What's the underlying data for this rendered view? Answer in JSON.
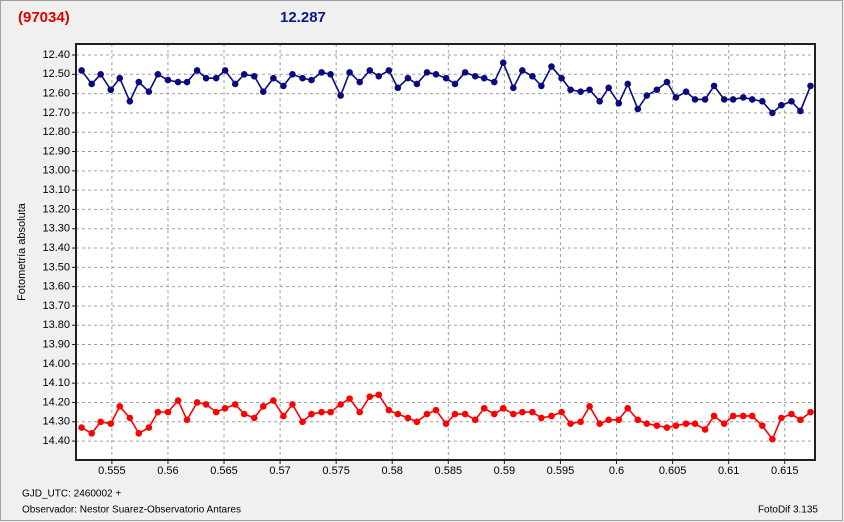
{
  "chart_data": {
    "type": "line",
    "title": "(97034)",
    "subtitle": "12.287",
    "y_label": "Fotometría absoluta",
    "x_note": "GJD_UTC: 2460002 +",
    "observer": "Observador: Nestor Suarez-Observatorio Antares",
    "software": "FotoDif 3.135",
    "title_color": "#e00000",
    "subtitle_color": "#0a1a8a",
    "grid": true,
    "y_inverted": true,
    "xlim": [
      0.5518,
      0.6177
    ],
    "ylim": [
      12.343,
      14.498
    ],
    "xticks": [
      0.555,
      0.56,
      0.565,
      0.57,
      0.575,
      0.58,
      0.585,
      0.59,
      0.595,
      0.6,
      0.605,
      0.61,
      0.615
    ],
    "yticks": [
      {
        "value": 12.4,
        "label": "12.40"
      },
      {
        "value": 12.5,
        "label": "12.50"
      },
      {
        "value": 12.6,
        "label": "12.60"
      },
      {
        "value": 12.7,
        "label": "12.70"
      },
      {
        "value": 12.8,
        "label": "12.80"
      },
      {
        "value": 12.9,
        "label": "12.90"
      },
      {
        "value": 13.0,
        "label": "13.00"
      },
      {
        "value": 13.1,
        "label": "13.10"
      },
      {
        "value": 13.2,
        "label": "13.20"
      },
      {
        "value": 13.3,
        "label": "13.30"
      },
      {
        "value": 13.4,
        "label": "13.40"
      },
      {
        "value": 13.5,
        "label": "13.50"
      },
      {
        "value": 13.6,
        "label": "13.60"
      },
      {
        "value": 13.7,
        "label": "13.70"
      },
      {
        "value": 13.8,
        "label": "13.80"
      },
      {
        "value": 13.9,
        "label": "13.90"
      },
      {
        "value": 14.0,
        "label": "14.00"
      },
      {
        "value": 14.1,
        "label": "14.10"
      },
      {
        "value": 14.2,
        "label": "14.20"
      },
      {
        "value": 14.3,
        "label": "14.30"
      },
      {
        "value": 14.4,
        "label": "14.40"
      }
    ],
    "x": [
      0.5523,
      0.5532,
      0.554,
      0.5549,
      0.5557,
      0.5566,
      0.5574,
      0.5583,
      0.5591,
      0.56,
      0.5609,
      0.5617,
      0.5626,
      0.5634,
      0.5643,
      0.5651,
      0.566,
      0.5668,
      0.5677,
      0.5685,
      0.5694,
      0.5703,
      0.5711,
      0.572,
      0.5728,
      0.5737,
      0.5745,
      0.5754,
      0.5762,
      0.5771,
      0.578,
      0.5788,
      0.5797,
      0.5805,
      0.5814,
      0.5822,
      0.5831,
      0.5839,
      0.5848,
      0.5856,
      0.5865,
      0.5874,
      0.5882,
      0.5891,
      0.5899,
      0.5908,
      0.5916,
      0.5925,
      0.5933,
      0.5942,
      0.5951,
      0.5959,
      0.5968,
      0.5976,
      0.5985,
      0.5993,
      0.6002,
      0.601,
      0.6019,
      0.6027,
      0.6036,
      0.6045,
      0.6053,
      0.6062,
      0.607,
      0.6079,
      0.6087,
      0.6096,
      0.6104,
      0.6113,
      0.6121,
      0.613,
      0.6139,
      0.6147,
      0.6156,
      0.6164,
      0.6173
    ],
    "series": [
      {
        "color": "#0a0a80",
        "values": [
          12.48,
          12.55,
          12.5,
          12.58,
          12.52,
          12.64,
          12.54,
          12.59,
          12.5,
          12.53,
          12.54,
          12.54,
          12.48,
          12.52,
          12.52,
          12.48,
          12.55,
          12.5,
          12.51,
          12.59,
          12.52,
          12.56,
          12.5,
          12.52,
          12.53,
          12.49,
          12.5,
          12.61,
          12.49,
          12.54,
          12.48,
          12.51,
          12.48,
          12.57,
          12.52,
          12.55,
          12.49,
          12.5,
          12.52,
          12.55,
          12.49,
          12.51,
          12.52,
          12.54,
          12.44,
          12.57,
          12.48,
          12.51,
          12.56,
          12.46,
          12.52,
          12.58,
          12.59,
          12.58,
          12.64,
          12.57,
          12.65,
          12.55,
          12.68,
          12.61,
          12.58,
          12.54,
          12.62,
          12.59,
          12.63,
          12.63,
          12.56,
          12.63,
          12.63,
          12.62,
          12.63,
          12.64,
          12.7,
          12.66,
          12.64,
          12.69,
          12.56
        ]
      },
      {
        "color": "#ff0000",
        "values": [
          14.33,
          14.36,
          14.3,
          14.31,
          14.22,
          14.28,
          14.36,
          14.33,
          14.25,
          14.25,
          14.19,
          14.29,
          14.2,
          14.21,
          14.25,
          14.23,
          14.21,
          14.26,
          14.28,
          14.22,
          14.19,
          14.27,
          14.21,
          14.3,
          14.26,
          14.25,
          14.25,
          14.21,
          14.18,
          14.25,
          14.17,
          14.16,
          14.24,
          14.26,
          14.28,
          14.3,
          14.26,
          14.24,
          14.31,
          14.26,
          14.26,
          14.29,
          14.23,
          14.26,
          14.23,
          14.26,
          14.25,
          14.25,
          14.28,
          14.27,
          14.25,
          14.31,
          14.3,
          14.22,
          14.31,
          14.29,
          14.29,
          14.23,
          14.29,
          14.31,
          14.32,
          14.33,
          14.32,
          14.31,
          14.31,
          14.34,
          14.27,
          14.31,
          14.27,
          14.27,
          14.27,
          14.32,
          14.39,
          14.28,
          14.26,
          14.29,
          14.25
        ]
      }
    ]
  }
}
